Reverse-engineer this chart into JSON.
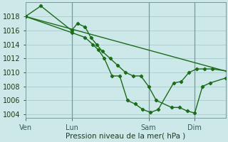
{
  "bg_color": "#cce8e8",
  "grid_color": "#aacccc",
  "line_color": "#1a6b1a",
  "marker_color": "#1a6b1a",
  "xlabel": "Pression niveau de la mer( hPa )",
  "ylim": [
    1003.5,
    1020.0
  ],
  "yticks": [
    1004,
    1006,
    1008,
    1010,
    1012,
    1014,
    1016,
    1018
  ],
  "xtick_labels": [
    "Ven",
    "Lun",
    "Sam",
    "Dim"
  ],
  "xtick_positions": [
    0,
    24,
    64,
    88
  ],
  "xlim": [
    0,
    104
  ],
  "series1_x": [
    0,
    8,
    24,
    27,
    31,
    34,
    37,
    40,
    44,
    48,
    52,
    56,
    60,
    64,
    68,
    76,
    80,
    84,
    88,
    92,
    96,
    104
  ],
  "series1_y": [
    1018,
    1019.5,
    1016,
    1017,
    1016.5,
    1015,
    1014,
    1013,
    1012,
    1011,
    1010,
    1009.5,
    1009.5,
    1008,
    1006,
    1005,
    1005,
    1004.5,
    1004.2,
    1008,
    1008.5,
    1009.2
  ],
  "series2_x": [
    0,
    24,
    31,
    35,
    38,
    41,
    45,
    49,
    53,
    57,
    61,
    65,
    69,
    77,
    81,
    85,
    89,
    93,
    97,
    105
  ],
  "series2_y": [
    1018,
    1015.7,
    1015,
    1014,
    1013.2,
    1012,
    1009.5,
    1009.5,
    1006,
    1005.5,
    1004.7,
    1004.3,
    1004.7,
    1008.5,
    1008.7,
    1010,
    1010.5,
    1010.5,
    1010.5,
    1010.2
  ],
  "series3_x": [
    0,
    104
  ],
  "series3_y": [
    1018,
    1010.2
  ],
  "vlines_x": [
    24,
    64,
    88
  ]
}
